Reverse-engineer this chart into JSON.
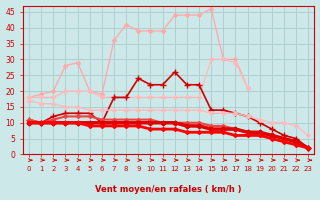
{
  "xlabel": "Vent moyen/en rafales ( km/h )",
  "xlim": [
    -0.5,
    23.5
  ],
  "ylim": [
    0,
    47
  ],
  "yticks": [
    0,
    5,
    10,
    15,
    20,
    25,
    30,
    35,
    40,
    45
  ],
  "xticks": [
    0,
    1,
    2,
    3,
    4,
    5,
    6,
    7,
    8,
    9,
    10,
    11,
    12,
    13,
    14,
    15,
    16,
    17,
    18,
    19,
    20,
    21,
    22,
    23
  ],
  "background_color": "#cce8e8",
  "grid_color": "#aacccc",
  "series": [
    {
      "x": [
        0,
        1,
        2,
        3,
        4,
        5,
        6,
        7,
        8,
        9,
        10,
        11,
        12,
        13,
        14,
        15,
        16,
        17,
        18,
        19,
        20,
        21,
        22,
        23
      ],
      "y": [
        18,
        19,
        20,
        28,
        29,
        20,
        19,
        36,
        41,
        39,
        39,
        39,
        44,
        44,
        44,
        46,
        30,
        30,
        21,
        null,
        null,
        null,
        null,
        null
      ],
      "color": "#ffaaaa",
      "lw": 1.0,
      "marker": "D",
      "ms": 2.0
    },
    {
      "x": [
        0,
        1,
        2,
        3,
        4,
        5,
        6,
        7,
        8,
        9,
        10,
        11,
        12,
        13,
        14,
        15,
        16,
        17,
        18,
        19,
        20,
        21,
        22,
        23
      ],
      "y": [
        18,
        18,
        18,
        20,
        20,
        20,
        18,
        18,
        18,
        18,
        18,
        18,
        18,
        18,
        18,
        30,
        30,
        29,
        21,
        null,
        null,
        null,
        null,
        null
      ],
      "color": "#ffbbbb",
      "lw": 1.0,
      "marker": "D",
      "ms": 2.0
    },
    {
      "x": [
        0,
        1,
        2,
        3,
        4,
        5,
        6,
        7,
        8,
        9,
        10,
        11,
        12,
        13,
        14,
        15,
        16,
        17,
        18,
        19,
        20,
        21,
        22,
        23
      ],
      "y": [
        11,
        10,
        12,
        13,
        13,
        13,
        10,
        18,
        18,
        24,
        22,
        22,
        26,
        22,
        22,
        14,
        14,
        13,
        12,
        10,
        8,
        6,
        5,
        2
      ],
      "color": "#cc0000",
      "lw": 1.2,
      "marker": "+",
      "ms": 4
    },
    {
      "x": [
        0,
        1,
        2,
        3,
        4,
        5,
        6,
        7,
        8,
        9,
        10,
        11,
        12,
        13,
        14,
        15,
        16,
        17,
        18,
        19,
        20,
        21,
        22,
        23
      ],
      "y": [
        17,
        16,
        16,
        15,
        15,
        14,
        14,
        14,
        14,
        14,
        14,
        14,
        14,
        14,
        14,
        13,
        13,
        13,
        12,
        11,
        10,
        10,
        9,
        6
      ],
      "color": "#ffbbbb",
      "lw": 1.0,
      "marker": "D",
      "ms": 2.0
    },
    {
      "x": [
        0,
        1,
        2,
        3,
        4,
        5,
        6,
        7,
        8,
        9,
        10,
        11,
        12,
        13,
        14,
        15,
        16,
        17,
        18,
        19,
        20,
        21,
        22,
        23
      ],
      "y": [
        11,
        10,
        11,
        12,
        12,
        12,
        11,
        11,
        11,
        11,
        11,
        10,
        10,
        10,
        10,
        9,
        9,
        8,
        7,
        6,
        6,
        5,
        4,
        2
      ],
      "color": "#ee4444",
      "lw": 1.5,
      "marker": "D",
      "ms": 2.0
    },
    {
      "x": [
        0,
        1,
        2,
        3,
        4,
        5,
        6,
        7,
        8,
        9,
        10,
        11,
        12,
        13,
        14,
        15,
        16,
        17,
        18,
        19,
        20,
        21,
        22,
        23
      ],
      "y": [
        10,
        10,
        10,
        10,
        10,
        10,
        10,
        10,
        10,
        10,
        10,
        10,
        10,
        9,
        9,
        8,
        8,
        8,
        7,
        7,
        6,
        5,
        4,
        2
      ],
      "color": "#dd0000",
      "lw": 2.5,
      "marker": "D",
      "ms": 2.5
    },
    {
      "x": [
        0,
        1,
        2,
        3,
        4,
        5,
        6,
        7,
        8,
        9,
        10,
        11,
        12,
        13,
        14,
        15,
        16,
        17,
        18,
        19,
        20,
        21,
        22,
        23
      ],
      "y": [
        10,
        10,
        10,
        10,
        10,
        9,
        9,
        9,
        9,
        9,
        8,
        8,
        8,
        7,
        7,
        7,
        7,
        6,
        6,
        6,
        5,
        4,
        3,
        2
      ],
      "color": "#ff0000",
      "lw": 2.0,
      "marker": "D",
      "ms": 2.0
    }
  ],
  "xlabel_color": "#cc0000",
  "tick_color": "#cc0000"
}
